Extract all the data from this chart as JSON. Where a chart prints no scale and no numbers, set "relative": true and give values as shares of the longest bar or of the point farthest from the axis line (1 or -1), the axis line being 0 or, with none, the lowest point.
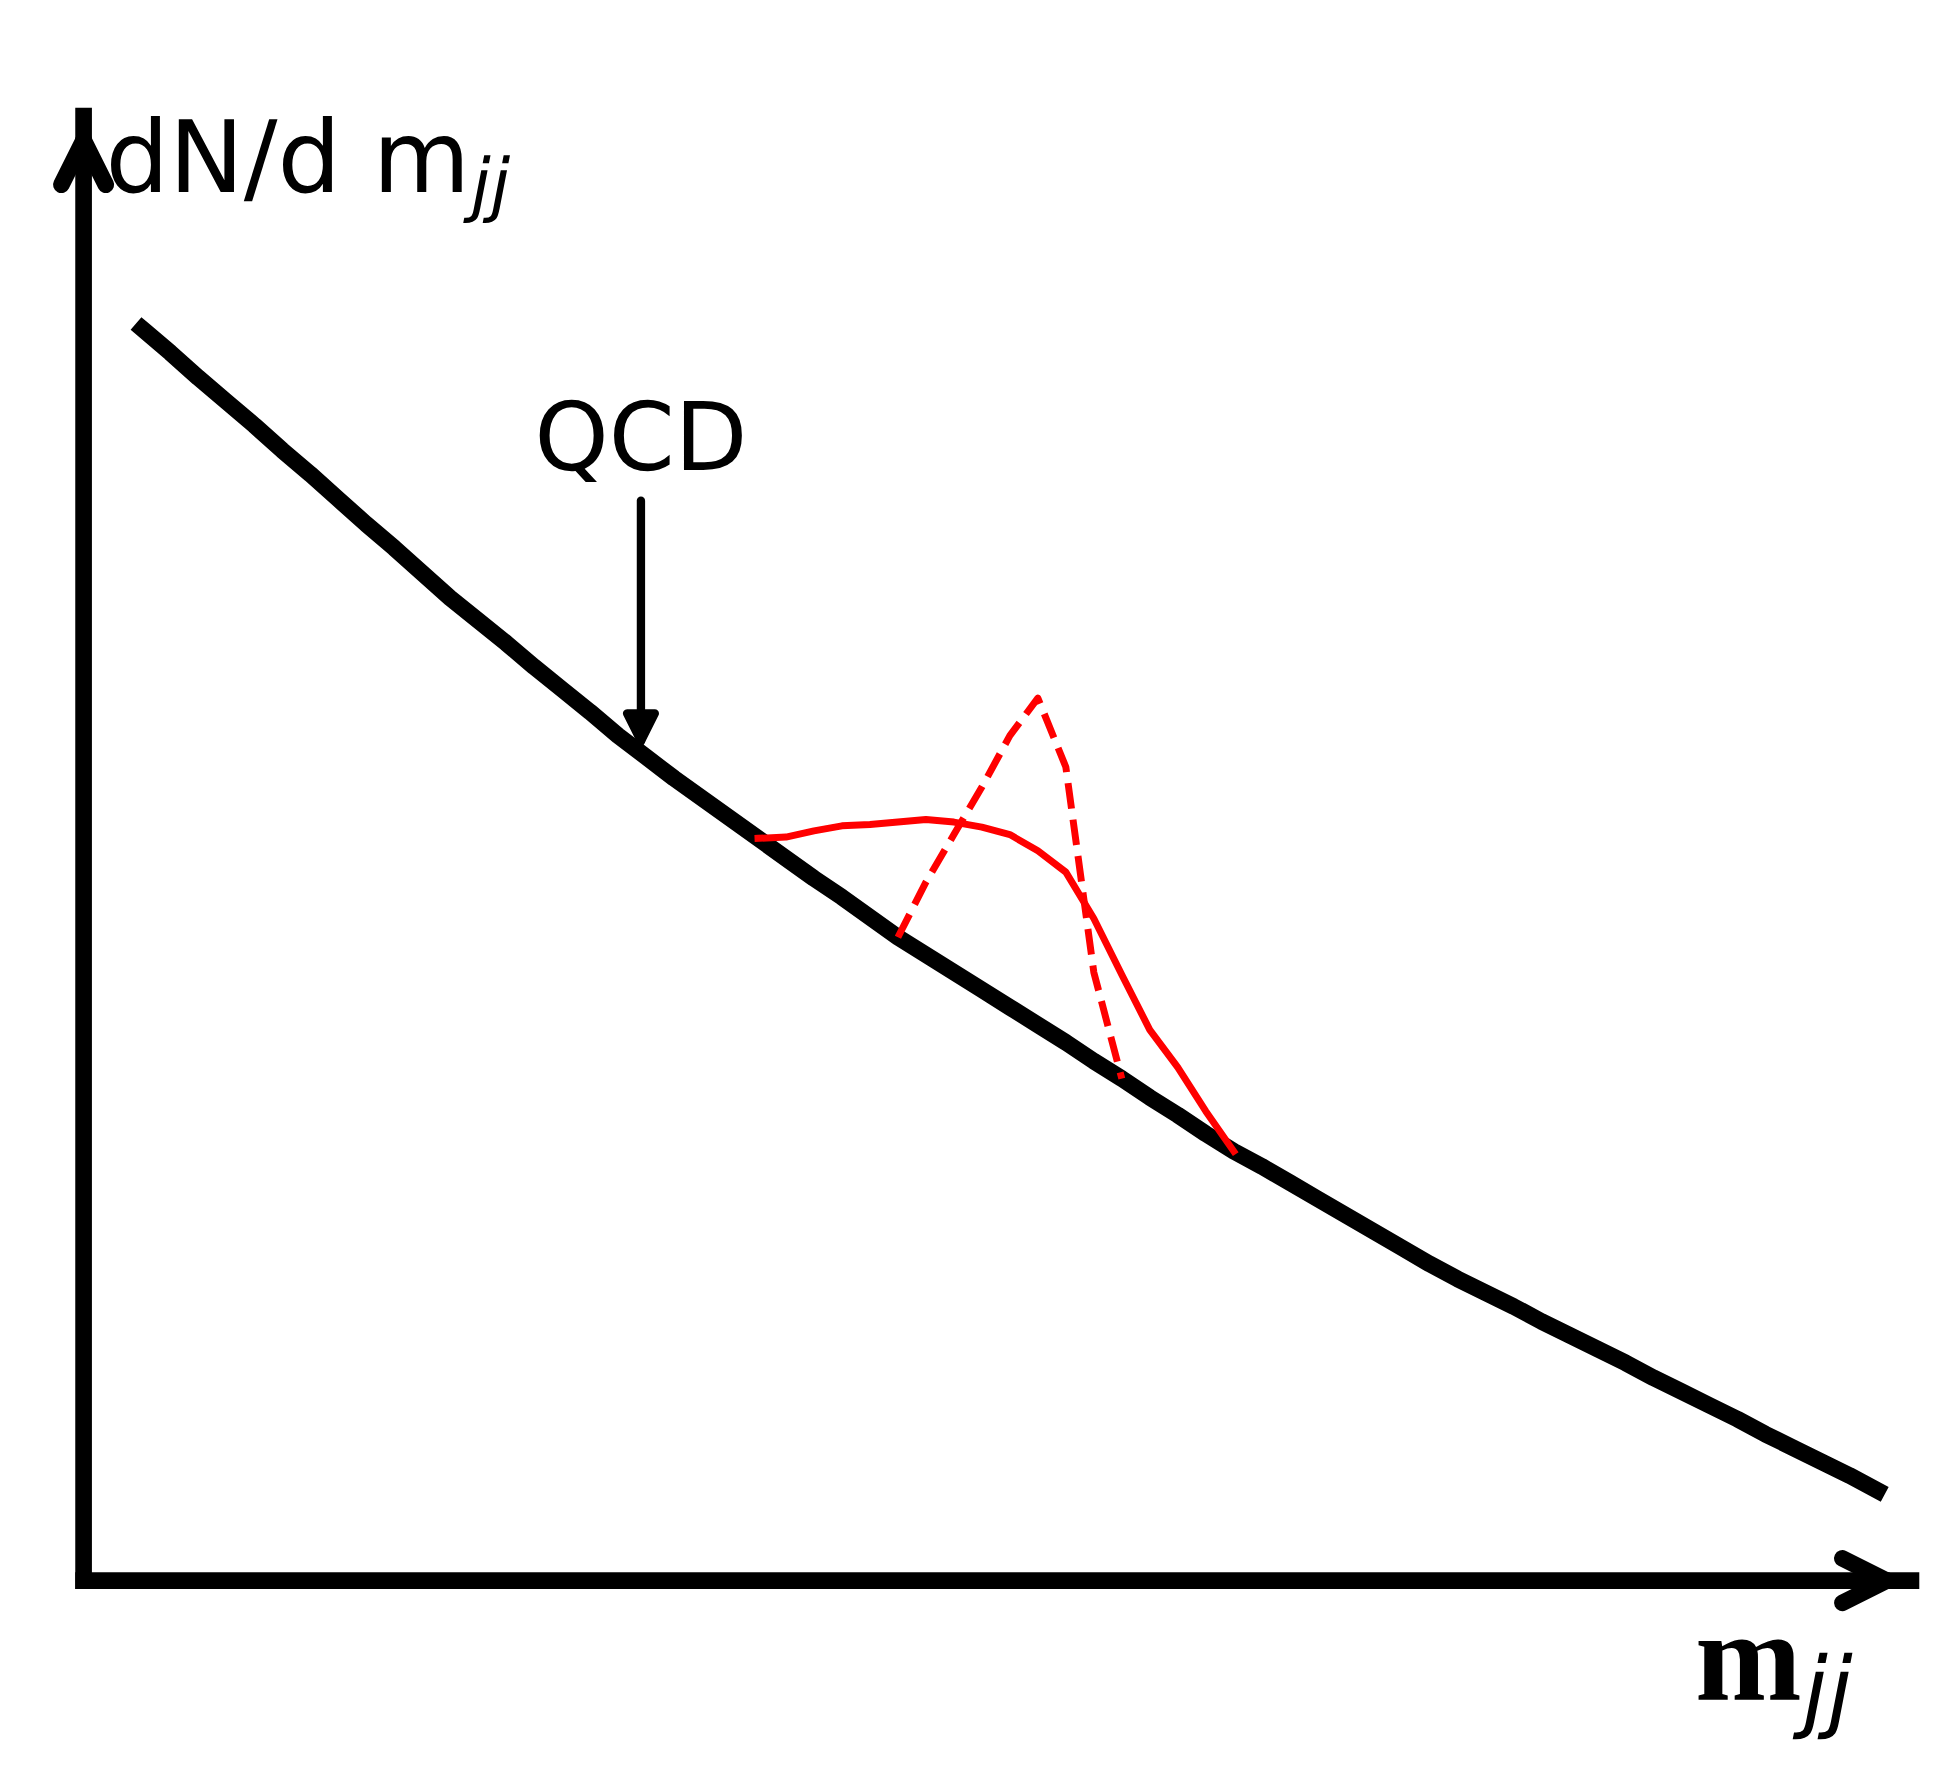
{
  "chart_data": {
    "type": "line",
    "relative": true,
    "xlabel": "m$_{jj}$",
    "ylabel": "dN/d m$_{jj}$",
    "marker": "none",
    "annotations": [
      "QCD"
    ],
    "categories": [
      null,
      null,
      null,
      null,
      null,
      null,
      null,
      null,
      null,
      null,
      null,
      null,
      null,
      null,
      null,
      null,
      null,
      null,
      null,
      null,
      null,
      null,
      null,
      null,
      null,
      null,
      null,
      null,
      null,
      null,
      null,
      null,
      null,
      null,
      null,
      null,
      null,
      null,
      null,
      null,
      null,
      null,
      null,
      null,
      null,
      null,
      null,
      null,
      null,
      null,
      null,
      null,
      null,
      null,
      null,
      null,
      null,
      null,
      null,
      null,
      null,
      null,
      null
    ],
    "series": [
      {
        "color": "#000000",
        "line_style": "solid",
        "values": [
          1.0,
          0.981,
          0.961,
          0.942,
          0.923,
          0.903,
          0.884,
          0.864,
          0.844,
          0.825,
          0.805,
          0.785,
          0.767,
          0.749,
          0.73,
          0.712,
          0.694,
          0.675,
          0.658,
          0.641,
          0.625,
          0.609,
          0.593,
          0.577,
          0.561,
          0.546,
          0.53,
          0.514,
          0.5,
          0.486,
          0.472,
          0.458,
          0.444,
          0.43,
          0.415,
          0.401,
          0.386,
          0.372,
          0.357,
          0.343,
          0.331,
          0.318,
          0.305,
          0.292,
          0.279,
          0.266,
          0.253,
          0.241,
          0.23,
          0.219,
          0.207,
          0.196,
          0.185,
          0.174,
          0.162,
          0.151,
          0.14,
          0.129,
          0.117,
          0.106,
          0.095,
          0.084,
          0.072
        ]
      },
      {
        "color": "#ff0000",
        "line_style": "solid",
        "values": [
          null,
          null,
          null,
          null,
          null,
          null,
          null,
          null,
          null,
          null,
          null,
          null,
          null,
          null,
          null,
          null,
          null,
          null,
          null,
          null,
          null,
          null,
          0.593,
          0.594,
          0.599,
          0.603,
          0.604,
          0.606,
          0.608,
          0.606,
          0.602,
          0.596,
          0.583,
          0.566,
          0.529,
          0.484,
          0.44,
          0.41,
          0.375,
          0.343,
          null,
          null,
          null,
          null,
          null,
          null,
          null,
          null,
          null,
          null,
          null,
          null,
          null,
          null,
          null,
          null,
          null,
          null,
          null,
          null,
          null,
          null,
          null
        ]
      },
      {
        "color": "#ff0000",
        "line_style": "dashed",
        "values": [
          null,
          null,
          null,
          null,
          null,
          null,
          null,
          null,
          null,
          null,
          null,
          null,
          null,
          null,
          null,
          null,
          null,
          null,
          null,
          null,
          null,
          null,
          null,
          null,
          null,
          null,
          null,
          0.514,
          0.558,
          0.596,
          0.634,
          0.675,
          0.705,
          0.65,
          0.486,
          0.401,
          null,
          null,
          null,
          null,
          null,
          null,
          null,
          null,
          null,
          null,
          null,
          null,
          null,
          null,
          null,
          null,
          null,
          null,
          null,
          null,
          null,
          null,
          null,
          null,
          null,
          null,
          null
        ]
      }
    ]
  }
}
